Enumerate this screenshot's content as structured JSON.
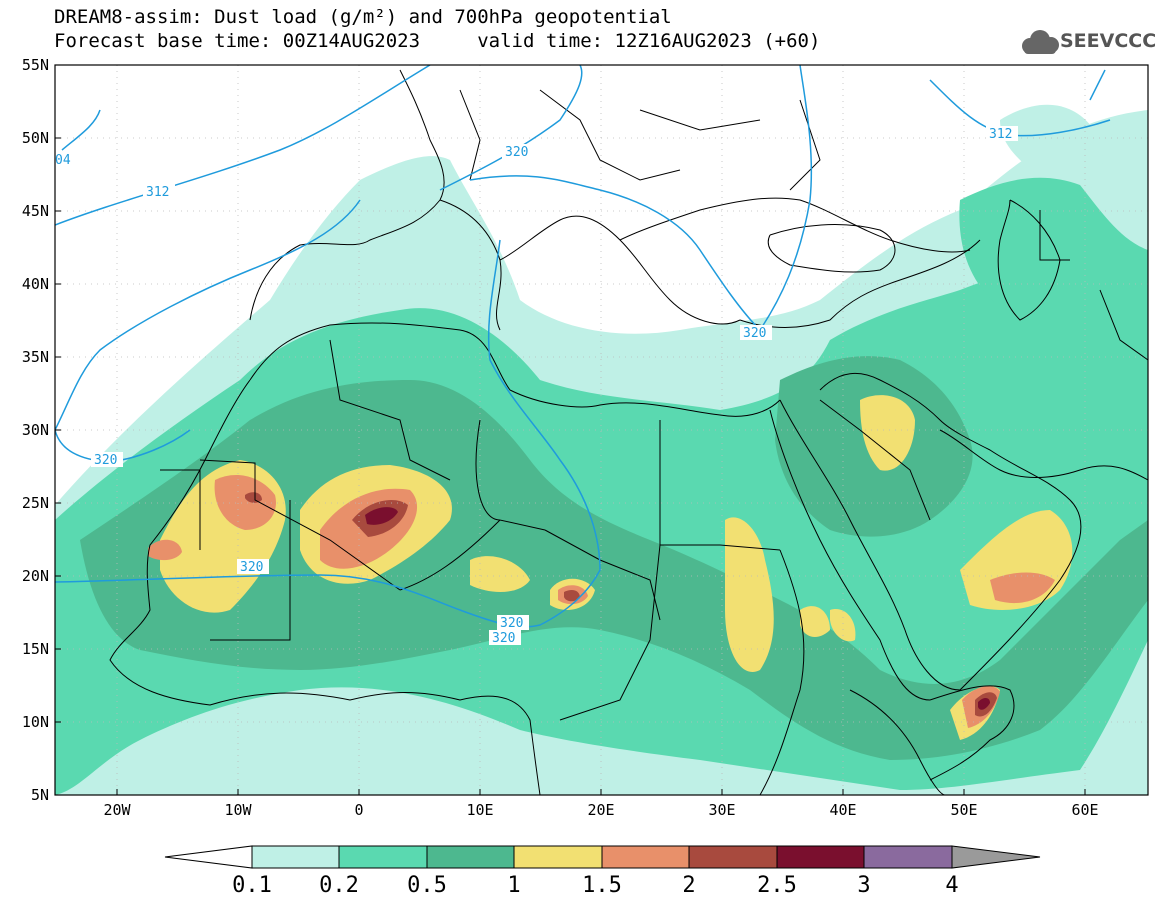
{
  "title": {
    "line1": "DREAM8-assim: Dust load (g/m²) and 700hPa geopotential",
    "line2": "Forecast base time: 00Z14AUG2023     valid time: 12Z16AUG2023 (+60)"
  },
  "logo": {
    "text": "SEEVCCC",
    "icon": "cloud-icon"
  },
  "map": {
    "lon_range": [
      -25,
      65
    ],
    "lat_range": [
      5,
      55
    ],
    "x_ticks": [
      "20W",
      "10W",
      "0",
      "10E",
      "20E",
      "30E",
      "40E",
      "50E",
      "60E"
    ],
    "y_ticks": [
      "55N",
      "50N",
      "45N",
      "40N",
      "35N",
      "30N",
      "25N",
      "20N",
      "15N",
      "10N",
      "5N"
    ],
    "contour_labels": [
      "04",
      "312",
      "320",
      "320",
      "320",
      "320",
      "320",
      "320",
      "312"
    ]
  },
  "colorbar": {
    "labels": [
      "0.1",
      "0.2",
      "0.5",
      "1",
      "1.5",
      "2",
      "2.5",
      "3",
      "4"
    ],
    "colors": [
      "#bff0e6",
      "#5ad9b0",
      "#4db88f",
      "#f2e072",
      "#e8906a",
      "#a84a3e",
      "#7a0f2e",
      "#8a6a9e",
      "#9a9a9a"
    ]
  }
}
